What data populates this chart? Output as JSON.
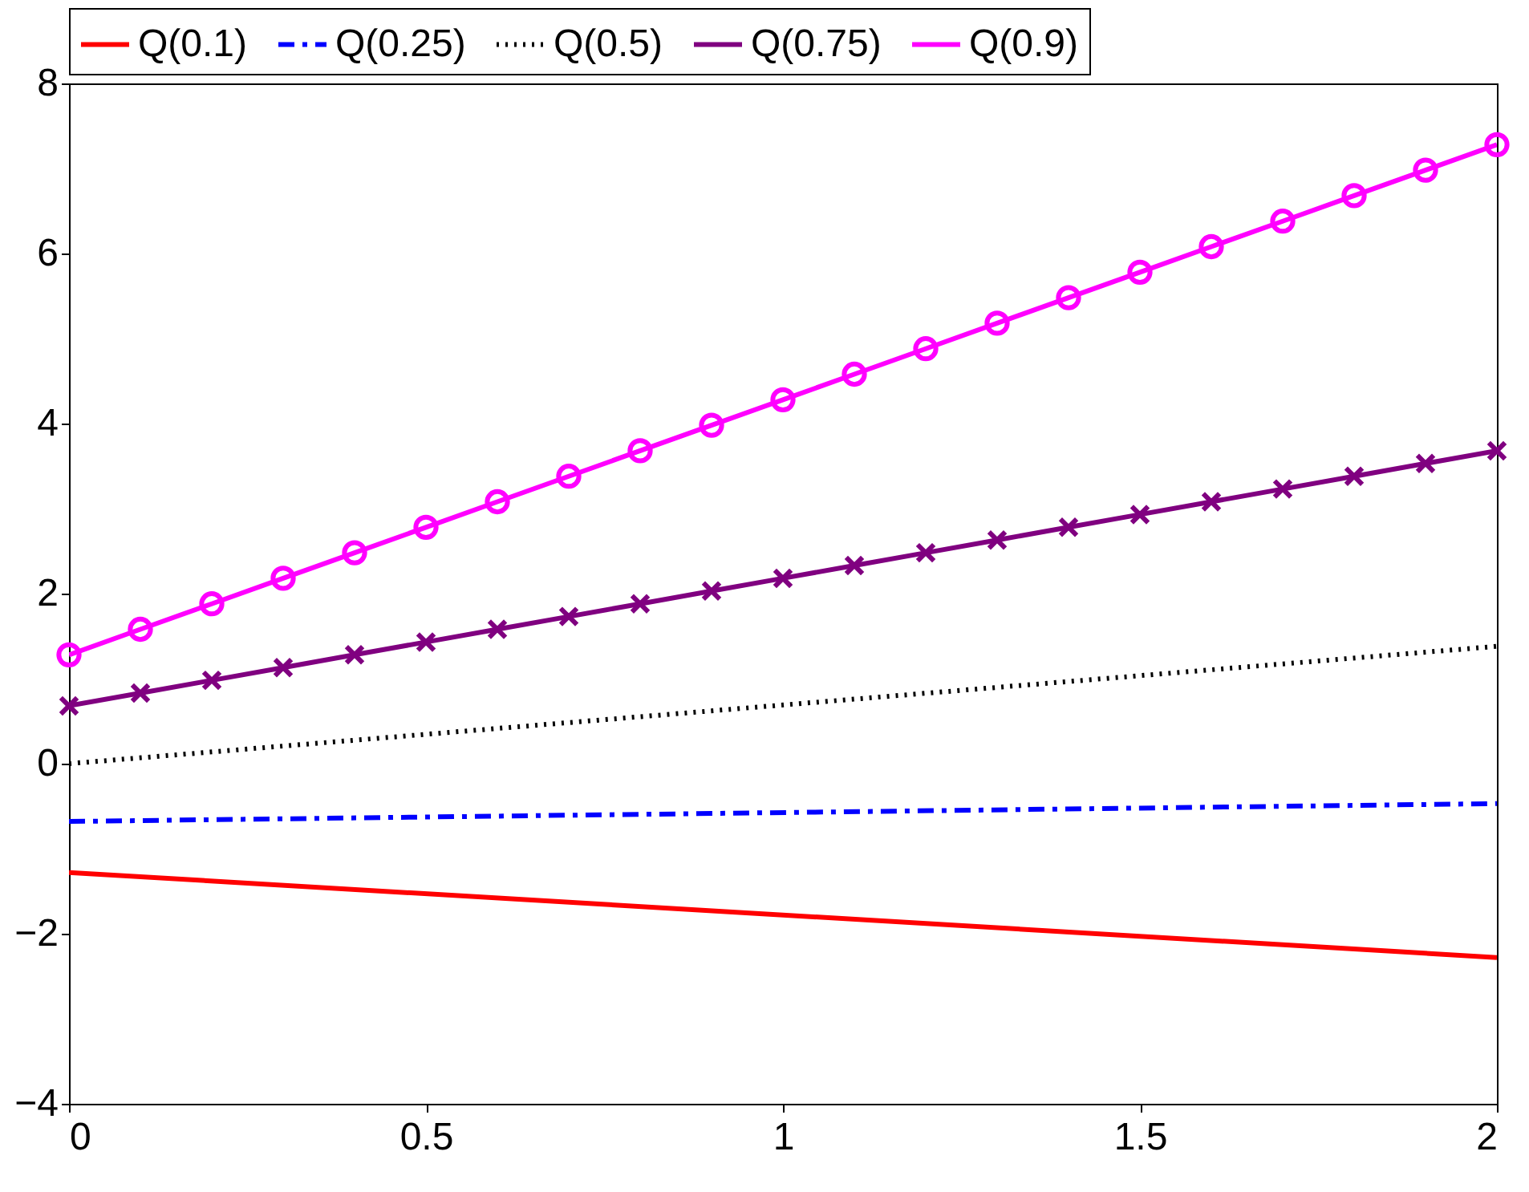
{
  "chart_data": {
    "type": "line",
    "xlim": [
      0,
      2
    ],
    "xticks": [
      0,
      0.5,
      1,
      1.5,
      2
    ],
    "ylim": [
      -4,
      8
    ],
    "yticks": [
      -4,
      -2,
      0,
      2,
      4,
      6,
      8
    ],
    "grid": false,
    "legend": "top",
    "series": [
      {
        "name": "Q(0.1)",
        "color": "#ff0000",
        "line_style": "solid",
        "marker": "none",
        "x": [
          0,
          2
        ],
        "values": [
          -1.28,
          -2.28
        ]
      },
      {
        "name": "Q(0.25)",
        "color": "#0000ff",
        "line_style": "dashdot",
        "marker": "none",
        "x": [
          0,
          2
        ],
        "values": [
          -0.68,
          -0.47
        ]
      },
      {
        "name": "Q(0.5)",
        "color": "#000000",
        "line_style": "dotted",
        "marker": "none",
        "x": [
          0,
          2
        ],
        "values": [
          0,
          1.38
        ]
      },
      {
        "name": "Q(0.75)",
        "color": "#800080",
        "line_style": "solid",
        "marker": "cross",
        "x": [
          0,
          0.1,
          0.2,
          0.3,
          0.4,
          0.5,
          0.6,
          0.7,
          0.8,
          0.9,
          1,
          1.1,
          1.2,
          1.3,
          1.4,
          1.5,
          1.6,
          1.7,
          1.8,
          1.9,
          2
        ],
        "values": [
          0.68,
          0.83,
          0.98,
          1.13,
          1.28,
          1.43,
          1.58,
          1.73,
          1.88,
          2.03,
          2.18,
          2.33,
          2.48,
          2.63,
          2.78,
          2.93,
          3.08,
          3.23,
          3.38,
          3.53,
          3.68
        ]
      },
      {
        "name": "Q(0.9)",
        "color": "#ff00ff",
        "line_style": "solid",
        "marker": "circle",
        "x": [
          0,
          0.1,
          0.2,
          0.3,
          0.4,
          0.5,
          0.6,
          0.7,
          0.8,
          0.9,
          1,
          1.1,
          1.2,
          1.3,
          1.4,
          1.5,
          1.6,
          1.7,
          1.8,
          1.9,
          2
        ],
        "values": [
          1.28,
          1.58,
          1.88,
          2.18,
          2.48,
          2.78,
          3.08,
          3.38,
          3.68,
          3.98,
          4.28,
          4.58,
          4.88,
          5.18,
          5.48,
          5.78,
          6.08,
          6.38,
          6.68,
          6.98,
          7.28
        ]
      }
    ]
  }
}
